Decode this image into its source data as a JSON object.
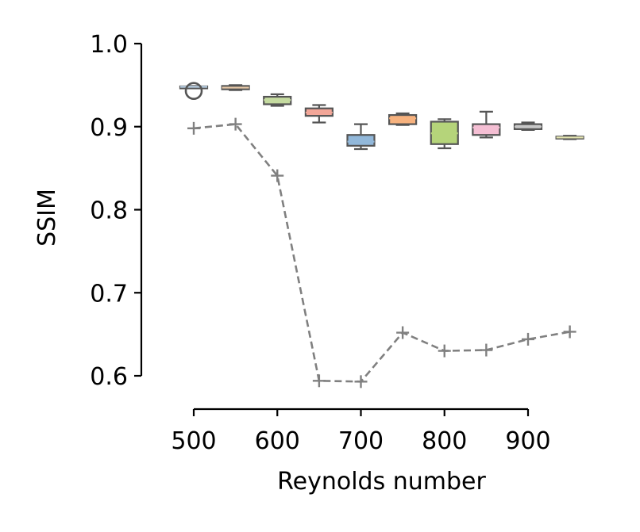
{
  "chart_data": {
    "type": "box",
    "xlabel": "Reynolds number",
    "ylabel": "SSIM",
    "xlim": [
      475,
      965
    ],
    "ylim": [
      0.6,
      1.0
    ],
    "x_ticks": [
      500,
      600,
      700,
      800,
      900
    ],
    "y_ticks": [
      0.6,
      0.7,
      0.8,
      0.9,
      1.0
    ],
    "x_tick_labels": [
      "500",
      "600",
      "700",
      "800",
      "900"
    ],
    "y_tick_labels": [
      "0.6",
      "0.7",
      "0.8",
      "0.9",
      "1.0"
    ],
    "grid": false,
    "boxes": [
      {
        "x": 500,
        "min": 0.947,
        "q1": 0.9475,
        "median": 0.948,
        "q3": 0.9485,
        "max": 0.949,
        "outliers": [
          0.943
        ],
        "color": "#bcd3e8"
      },
      {
        "x": 550,
        "min": 0.944,
        "q1": 0.945,
        "median": 0.947,
        "q3": 0.949,
        "max": 0.95,
        "outliers": [],
        "color": "#e8c9a8"
      },
      {
        "x": 600,
        "min": 0.925,
        "q1": 0.927,
        "median": 0.932,
        "q3": 0.936,
        "max": 0.939,
        "outliers": [],
        "color": "#c5dba0"
      },
      {
        "x": 650,
        "min": 0.905,
        "q1": 0.913,
        "median": 0.917,
        "q3": 0.922,
        "max": 0.926,
        "outliers": [],
        "color": "#f2a698"
      },
      {
        "x": 700,
        "min": 0.873,
        "q1": 0.877,
        "median": 0.882,
        "q3": 0.89,
        "max": 0.903,
        "outliers": [],
        "color": "#92b8da"
      },
      {
        "x": 750,
        "min": 0.902,
        "q1": 0.903,
        "median": 0.91,
        "q3": 0.914,
        "max": 0.916,
        "outliers": [],
        "color": "#f7b27e"
      },
      {
        "x": 800,
        "min": 0.874,
        "q1": 0.879,
        "median": 0.892,
        "q3": 0.906,
        "max": 0.909,
        "outliers": [],
        "color": "#b5d47a"
      },
      {
        "x": 850,
        "min": 0.887,
        "q1": 0.89,
        "median": 0.899,
        "q3": 0.903,
        "max": 0.918,
        "outliers": [],
        "color": "#f5bfd4"
      },
      {
        "x": 900,
        "min": 0.896,
        "q1": 0.897,
        "median": 0.9,
        "q3": 0.903,
        "max": 0.905,
        "outliers": [],
        "color": "#c8c8c8"
      },
      {
        "x": 950,
        "min": 0.885,
        "q1": 0.886,
        "median": 0.887,
        "q3": 0.888,
        "max": 0.889,
        "outliers": [],
        "color": "#e3e4b0"
      }
    ],
    "series": [
      {
        "style": "dashed",
        "marker": "+",
        "color": "#808080",
        "x": [
          500,
          550,
          600,
          650,
          700,
          750,
          800,
          850,
          900,
          950
        ],
        "y": [
          0.898,
          0.903,
          0.841,
          0.594,
          0.593,
          0.652,
          0.63,
          0.631,
          0.644,
          0.653
        ]
      }
    ]
  }
}
